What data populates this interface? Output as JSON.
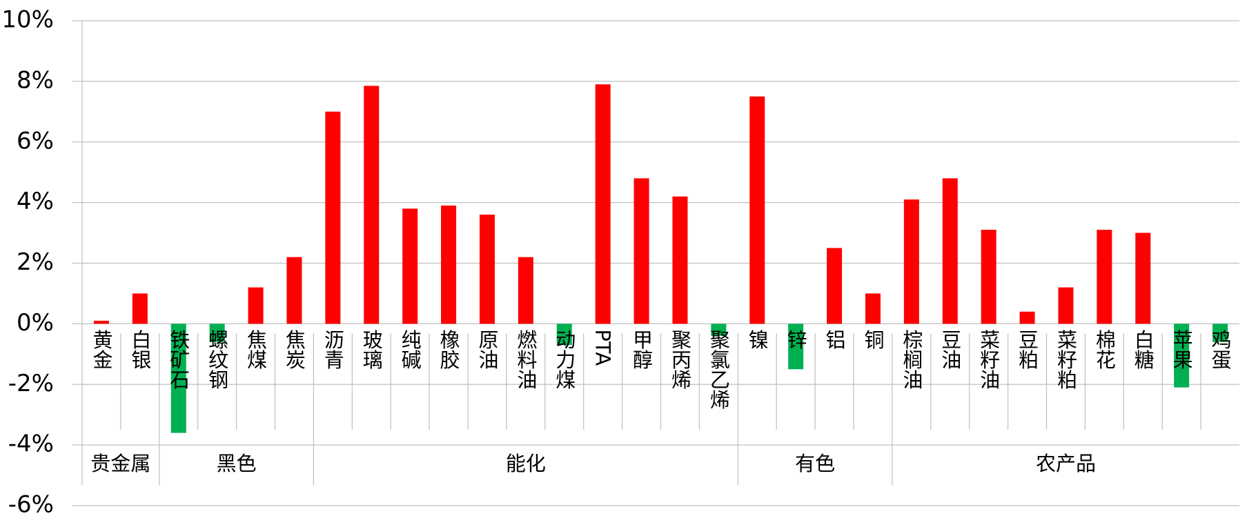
{
  "chart_data": {
    "type": "bar",
    "groups": [
      {
        "name": "贵金属",
        "categories": [
          "黄金",
          "白银"
        ],
        "values": [
          0.1,
          1.0
        ]
      },
      {
        "name": "黑色",
        "categories": [
          "铁矿石",
          "螺纹钢",
          "焦煤",
          "焦炭"
        ],
        "values": [
          -3.6,
          -0.6,
          1.2,
          2.2
        ]
      },
      {
        "name": "能化",
        "categories": [
          "沥青",
          "玻璃",
          "纯碱",
          "橡胶",
          "原油",
          "燃料油",
          "动力煤",
          "PTA",
          "甲醇",
          "聚丙烯",
          "聚氯乙烯"
        ],
        "values": [
          7.0,
          7.85,
          3.8,
          3.9,
          3.6,
          2.2,
          -0.7,
          7.9,
          4.8,
          4.2,
          -0.4
        ]
      },
      {
        "name": "有色",
        "categories": [
          "镍",
          "锌",
          "铝",
          "铜"
        ],
        "values": [
          7.5,
          -1.5,
          2.5,
          1.0
        ]
      },
      {
        "name": "农产品",
        "categories": [
          "棕榈油",
          "豆油",
          "菜籽油",
          "豆粕",
          "菜籽粕",
          "棉花",
          "白糖",
          "苹果",
          "鸡蛋"
        ],
        "values": [
          4.1,
          4.8,
          3.1,
          0.4,
          1.2,
          3.1,
          3.0,
          -2.1,
          -0.6
        ]
      }
    ],
    "positive_color": "#ff0000",
    "negative_color": "#00b050",
    "ylim": [
      -6,
      10
    ],
    "yticks": [
      {
        "value": -6,
        "label": "-6%"
      },
      {
        "value": -4,
        "label": "-4%"
      },
      {
        "value": -2,
        "label": "-2%"
      },
      {
        "value": 0,
        "label": "0%"
      },
      {
        "value": 2,
        "label": "2%"
      },
      {
        "value": 4,
        "label": "4%"
      },
      {
        "value": 6,
        "label": "6%"
      },
      {
        "value": 8,
        "label": "8%"
      },
      {
        "value": 10,
        "label": "10%"
      }
    ],
    "grid": true
  }
}
